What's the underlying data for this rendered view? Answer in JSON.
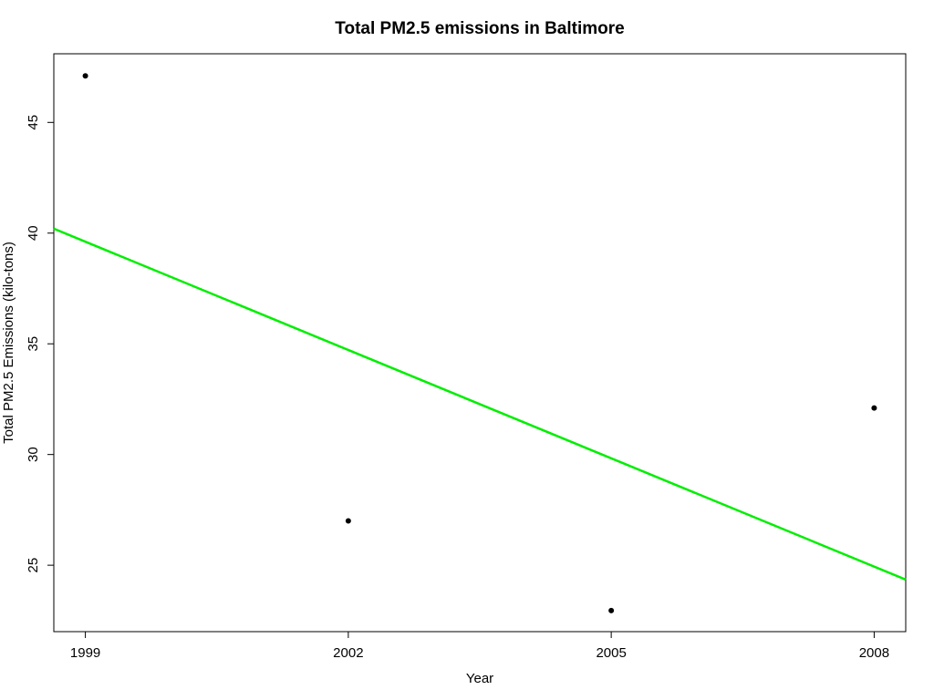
{
  "chart_data": {
    "type": "scatter",
    "title": "Total PM2.5 emissions in Baltimore",
    "xlabel": "Year",
    "ylabel": "Total PM2.5 Emissions (kilo-tons)",
    "x": [
      1999,
      2002,
      2005,
      2008
    ],
    "y": [
      47.1,
      27.0,
      22.95,
      32.1
    ],
    "xticks": [
      1999,
      2002,
      2005,
      2008
    ],
    "yticks": [
      25,
      30,
      35,
      40,
      45
    ],
    "xlim": [
      1998.64,
      2008.36
    ],
    "ylim": [
      22.0,
      48.1
    ],
    "regression_line": {
      "x": [
        1998.64,
        2008.36
      ],
      "y": [
        40.2,
        24.35
      ]
    },
    "point_color": "#000000",
    "line_color": "#00ee00",
    "grid": false,
    "legend": "none"
  }
}
